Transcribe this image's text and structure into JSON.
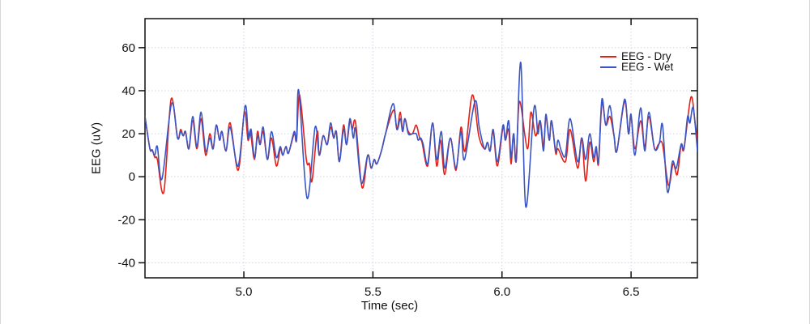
{
  "chart_data": {
    "type": "line",
    "title": "",
    "xlabel": "Time (sec)",
    "ylabel": "EEG (uV)",
    "xlim": [
      4.617,
      6.757
    ],
    "ylim": [
      -47,
      73.5
    ],
    "x_ticks": [
      5.0,
      5.5,
      6.0,
      6.5
    ],
    "x_tick_labels": [
      "5.0",
      "5.5",
      "6.0",
      "6.5"
    ],
    "y_ticks": [
      -40,
      -20,
      0,
      20,
      40,
      60
    ],
    "y_tick_labels": [
      "-40",
      "-20",
      "0",
      "20",
      "40",
      "60"
    ],
    "grid": true,
    "grid_color": "#d4d4ec",
    "frame_color": "#111111",
    "legend": {
      "position": "upper right",
      "entries": [
        {
          "label": "EEG - Dry",
          "color": "#e02219"
        },
        {
          "label": "EEG - Wet",
          "color": "#3a55c4"
        }
      ]
    },
    "series": [
      {
        "name": "EEG - Dry",
        "color": "#e02219",
        "points": [
          [
            4.617,
            28
          ],
          [
            4.636,
            13
          ],
          [
            4.645,
            12.5
          ],
          [
            4.655,
            9
          ],
          [
            4.665,
            8
          ],
          [
            4.69,
            -7
          ],
          [
            4.718,
            36
          ],
          [
            4.743,
            18
          ],
          [
            4.755,
            22
          ],
          [
            4.765,
            19
          ],
          [
            4.774,
            21
          ],
          [
            4.787,
            13
          ],
          [
            4.802,
            26
          ],
          [
            4.818,
            13
          ],
          [
            4.834,
            27
          ],
          [
            4.852,
            10
          ],
          [
            4.868,
            20
          ],
          [
            4.881,
            13
          ],
          [
            4.893,
            24
          ],
          [
            4.906,
            17
          ],
          [
            4.915,
            21
          ],
          [
            4.931,
            12
          ],
          [
            4.947,
            25
          ],
          [
            4.978,
            3
          ],
          [
            5.002,
            30
          ],
          [
            5.016,
            17
          ],
          [
            5.025,
            21
          ],
          [
            5.041,
            8
          ],
          [
            5.053,
            21
          ],
          [
            5.063,
            15
          ],
          [
            5.075,
            21
          ],
          [
            5.091,
            8
          ],
          [
            5.107,
            18
          ],
          [
            5.126,
            5
          ],
          [
            5.141,
            13
          ],
          [
            5.151,
            10
          ],
          [
            5.163,
            14
          ],
          [
            5.173,
            11
          ],
          [
            5.195,
            20
          ],
          [
            5.204,
            17
          ],
          [
            5.216,
            38
          ],
          [
            5.242,
            8
          ],
          [
            5.254,
            6
          ],
          [
            5.264,
            -2
          ],
          [
            5.284,
            21
          ],
          [
            5.292,
            10
          ],
          [
            5.307,
            19
          ],
          [
            5.323,
            15
          ],
          [
            5.336,
            23
          ],
          [
            5.348,
            18
          ],
          [
            5.358,
            21
          ],
          [
            5.37,
            7
          ],
          [
            5.386,
            24
          ],
          [
            5.398,
            15
          ],
          [
            5.411,
            26
          ],
          [
            5.42,
            22
          ],
          [
            5.433,
            25
          ],
          [
            5.458,
            -5
          ],
          [
            5.48,
            10
          ],
          [
            5.493,
            4
          ],
          [
            5.505,
            8
          ],
          [
            5.515,
            6
          ],
          [
            5.533,
            12
          ],
          [
            5.549,
            20
          ],
          [
            5.58,
            31
          ],
          [
            5.593,
            22
          ],
          [
            5.606,
            30
          ],
          [
            5.615,
            21
          ],
          [
            5.624,
            27
          ],
          [
            5.637,
            21
          ],
          [
            5.653,
            20
          ],
          [
            5.668,
            24
          ],
          [
            5.681,
            18
          ],
          [
            5.69,
            16
          ],
          [
            5.712,
            5
          ],
          [
            5.731,
            25
          ],
          [
            5.747,
            5
          ],
          [
            5.762,
            17
          ],
          [
            5.778,
            1
          ],
          [
            5.8,
            18
          ],
          [
            5.822,
            3
          ],
          [
            5.841,
            23
          ],
          [
            5.857,
            12
          ],
          [
            5.885,
            38
          ],
          [
            5.91,
            19
          ],
          [
            5.932,
            13
          ],
          [
            5.944,
            16
          ],
          [
            5.954,
            12
          ],
          [
            5.966,
            21
          ],
          [
            5.982,
            5
          ],
          [
            6.004,
            23
          ],
          [
            6.013,
            17
          ],
          [
            6.026,
            22
          ],
          [
            6.035,
            6
          ],
          [
            6.045,
            20
          ],
          [
            6.055,
            7
          ],
          [
            6.068,
            35
          ],
          [
            6.098,
            13
          ],
          [
            6.112,
            30
          ],
          [
            6.13,
            19
          ],
          [
            6.148,
            26
          ],
          [
            6.161,
            14
          ],
          [
            6.17,
            28
          ],
          [
            6.183,
            17
          ],
          [
            6.192,
            26
          ],
          [
            6.208,
            11
          ],
          [
            6.217,
            13
          ],
          [
            6.246,
            7
          ],
          [
            6.264,
            22
          ],
          [
            6.293,
            4
          ],
          [
            6.309,
            18
          ],
          [
            6.324,
            -2
          ],
          [
            6.34,
            16
          ],
          [
            6.355,
            7
          ],
          [
            6.365,
            13
          ],
          [
            6.374,
            6
          ],
          [
            6.387,
            34
          ],
          [
            6.402,
            24
          ],
          [
            6.418,
            28
          ],
          [
            6.434,
            19
          ],
          [
            6.445,
            12
          ],
          [
            6.475,
            35
          ],
          [
            6.49,
            20
          ],
          [
            6.5,
            28
          ],
          [
            6.515,
            13
          ],
          [
            6.537,
            26
          ],
          [
            6.553,
            14
          ],
          [
            6.569,
            28
          ],
          [
            6.591,
            13
          ],
          [
            6.606,
            15
          ],
          [
            6.622,
            15
          ],
          [
            6.645,
            -4
          ],
          [
            6.663,
            6
          ],
          [
            6.679,
            1
          ],
          [
            6.694,
            15
          ],
          [
            6.705,
            13
          ],
          [
            6.732,
            37
          ],
          [
            6.748,
            25
          ],
          [
            6.757,
            17
          ]
        ]
      },
      {
        "name": "EEG - Wet",
        "color": "#3a55c4",
        "points": [
          [
            4.617,
            28
          ],
          [
            4.636,
            13
          ],
          [
            4.645,
            12.5
          ],
          [
            4.655,
            10
          ],
          [
            4.665,
            14
          ],
          [
            4.683,
            -1
          ],
          [
            4.72,
            34
          ],
          [
            4.743,
            18
          ],
          [
            4.755,
            21
          ],
          [
            4.765,
            19
          ],
          [
            4.774,
            21
          ],
          [
            4.787,
            13
          ],
          [
            4.802,
            28
          ],
          [
            4.818,
            14
          ],
          [
            4.834,
            30
          ],
          [
            4.852,
            12
          ],
          [
            4.868,
            18
          ],
          [
            4.881,
            13
          ],
          [
            4.893,
            24
          ],
          [
            4.906,
            17
          ],
          [
            4.915,
            21
          ],
          [
            4.931,
            12
          ],
          [
            4.947,
            23
          ],
          [
            4.978,
            5
          ],
          [
            5.005,
            33
          ],
          [
            5.018,
            18
          ],
          [
            5.028,
            22
          ],
          [
            5.041,
            9
          ],
          [
            5.053,
            19
          ],
          [
            5.063,
            15
          ],
          [
            5.075,
            23
          ],
          [
            5.091,
            8
          ],
          [
            5.107,
            21
          ],
          [
            5.126,
            9
          ],
          [
            5.141,
            14
          ],
          [
            5.151,
            10
          ],
          [
            5.163,
            14
          ],
          [
            5.173,
            11
          ],
          [
            5.195,
            21
          ],
          [
            5.204,
            17
          ],
          [
            5.213,
            40
          ],
          [
            5.245,
            -10
          ],
          [
            5.276,
            23
          ],
          [
            5.292,
            10
          ],
          [
            5.307,
            19
          ],
          [
            5.323,
            15
          ],
          [
            5.336,
            25
          ],
          [
            5.348,
            18
          ],
          [
            5.358,
            21
          ],
          [
            5.37,
            7
          ],
          [
            5.386,
            22
          ],
          [
            5.398,
            15
          ],
          [
            5.411,
            27
          ],
          [
            5.424,
            18
          ],
          [
            5.433,
            22
          ],
          [
            5.455,
            -3
          ],
          [
            5.48,
            10
          ],
          [
            5.493,
            4
          ],
          [
            5.505,
            8
          ],
          [
            5.515,
            6
          ],
          [
            5.533,
            12
          ],
          [
            5.549,
            20
          ],
          [
            5.578,
            34
          ],
          [
            5.593,
            22
          ],
          [
            5.606,
            27
          ],
          [
            5.615,
            21
          ],
          [
            5.624,
            27
          ],
          [
            5.637,
            20
          ],
          [
            5.653,
            20
          ],
          [
            5.668,
            20
          ],
          [
            5.675,
            17
          ],
          [
            5.685,
            18
          ],
          [
            5.695,
            15
          ],
          [
            5.712,
            6
          ],
          [
            5.731,
            25
          ],
          [
            5.747,
            8
          ],
          [
            5.765,
            21
          ],
          [
            5.778,
            4
          ],
          [
            5.8,
            18
          ],
          [
            5.822,
            4
          ],
          [
            5.841,
            21
          ],
          [
            5.855,
            8
          ],
          [
            5.895,
            35
          ],
          [
            5.912,
            23
          ],
          [
            5.932,
            13
          ],
          [
            5.944,
            16
          ],
          [
            5.954,
            12
          ],
          [
            5.966,
            22
          ],
          [
            5.982,
            7
          ],
          [
            6.004,
            24
          ],
          [
            6.013,
            17
          ],
          [
            6.026,
            26
          ],
          [
            6.035,
            9
          ],
          [
            6.045,
            20
          ],
          [
            6.055,
            8
          ],
          [
            6.073,
            53
          ],
          [
            6.092,
            -14
          ],
          [
            6.124,
            32
          ],
          [
            6.139,
            20
          ],
          [
            6.148,
            26
          ],
          [
            6.161,
            12
          ],
          [
            6.17,
            29
          ],
          [
            6.183,
            17
          ],
          [
            6.192,
            26
          ],
          [
            6.208,
            12
          ],
          [
            6.217,
            17
          ],
          [
            6.23,
            12
          ],
          [
            6.246,
            10
          ],
          [
            6.264,
            27
          ],
          [
            6.293,
            7
          ],
          [
            6.309,
            18
          ],
          [
            6.324,
            8
          ],
          [
            6.34,
            20
          ],
          [
            6.355,
            9
          ],
          [
            6.365,
            14
          ],
          [
            6.374,
            7
          ],
          [
            6.387,
            36
          ],
          [
            6.402,
            24
          ],
          [
            6.418,
            33
          ],
          [
            6.434,
            19
          ],
          [
            6.445,
            12
          ],
          [
            6.475,
            36
          ],
          [
            6.49,
            20
          ],
          [
            6.5,
            29
          ],
          [
            6.515,
            10
          ],
          [
            6.537,
            32
          ],
          [
            6.553,
            12
          ],
          [
            6.569,
            30
          ],
          [
            6.591,
            13
          ],
          [
            6.61,
            16
          ],
          [
            6.622,
            24
          ],
          [
            6.641,
            -7
          ],
          [
            6.66,
            7
          ],
          [
            6.675,
            4
          ],
          [
            6.694,
            15
          ],
          [
            6.705,
            13
          ],
          [
            6.719,
            28
          ],
          [
            6.728,
            25
          ],
          [
            6.741,
            32
          ],
          [
            6.757,
            12
          ]
        ]
      }
    ]
  }
}
